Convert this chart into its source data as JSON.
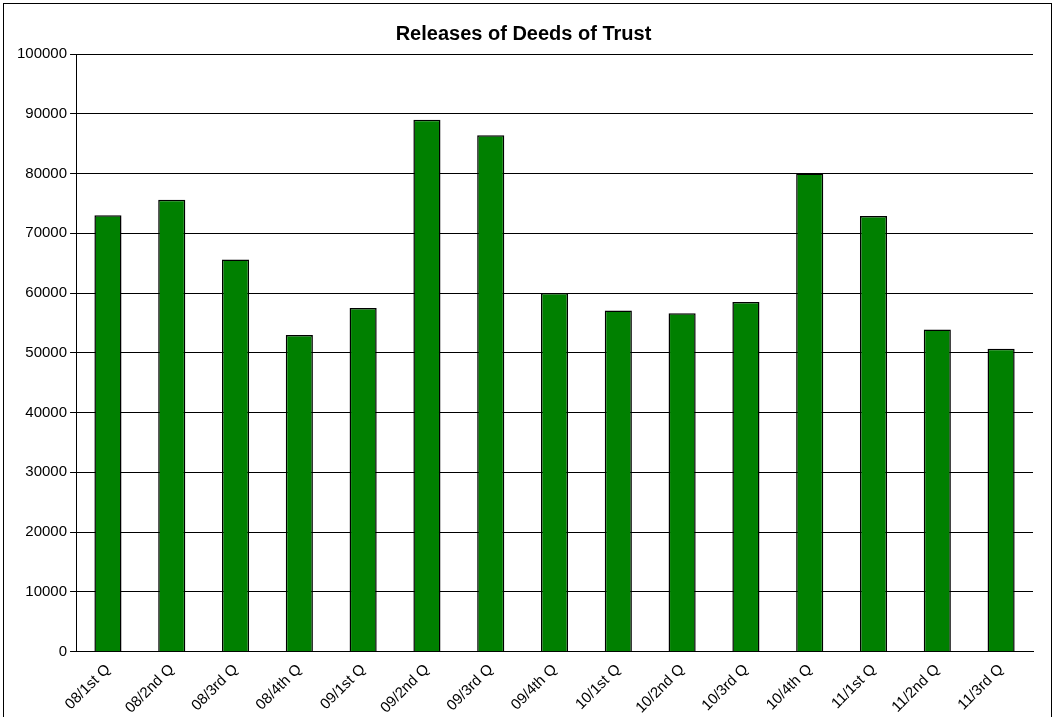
{
  "chart_data": {
    "type": "bar",
    "title": "Releases of Deeds of Trust",
    "categories": [
      "08/1st Q",
      "08/2nd Q",
      "08/3rd Q",
      "08/4th Q",
      "09/1st Q",
      "09/2nd Q",
      "09/3rd Q",
      "09/4th Q",
      "10/1st Q",
      "10/2nd Q",
      "10/3rd Q",
      "10/4th Q",
      "11/1st Q",
      "11/2nd Q",
      "11/3rd Q"
    ],
    "values": [
      73000,
      75600,
      65600,
      53000,
      57500,
      89000,
      86400,
      60000,
      57100,
      56600,
      58500,
      80000,
      72900,
      53900,
      50700
    ],
    "color": "#008000",
    "ylim": [
      0,
      100000
    ],
    "yticks": [
      0,
      10000,
      20000,
      30000,
      40000,
      50000,
      60000,
      70000,
      80000,
      90000,
      100000
    ],
    "grid": "y"
  }
}
